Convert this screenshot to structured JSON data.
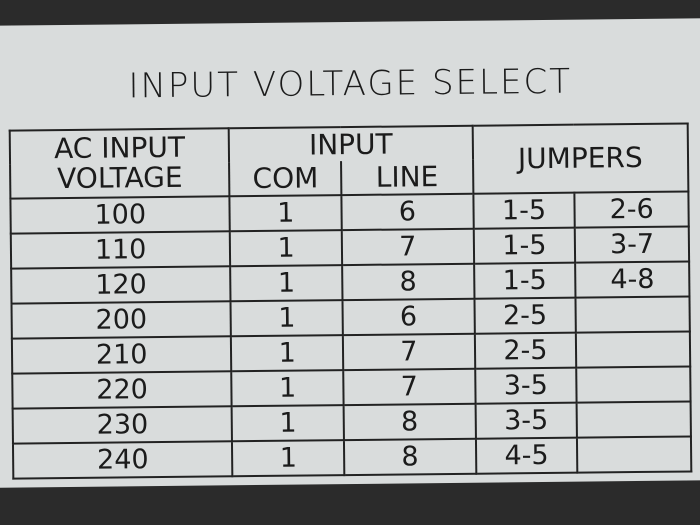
{
  "title": "INPUT VOLTAGE SELECT",
  "headers": {
    "ac_input_voltage": "AC INPUT VOLTAGE",
    "input": "INPUT",
    "com": "COM",
    "line": "LINE",
    "jumpers": "JUMPERS"
  },
  "rows": [
    {
      "voltage": "100",
      "com": "1",
      "line": "6",
      "jumper1": "1-5",
      "jumper2": "2-6"
    },
    {
      "voltage": "110",
      "com": "1",
      "line": "7",
      "jumper1": "1-5",
      "jumper2": "3-7"
    },
    {
      "voltage": "120",
      "com": "1",
      "line": "8",
      "jumper1": "1-5",
      "jumper2": "4-8"
    },
    {
      "voltage": "200",
      "com": "1",
      "line": "6",
      "jumper1": "2-5",
      "jumper2": ""
    },
    {
      "voltage": "210",
      "com": "1",
      "line": "7",
      "jumper1": "2-5",
      "jumper2": ""
    },
    {
      "voltage": "220",
      "com": "1",
      "line": "7",
      "jumper1": "3-5",
      "jumper2": ""
    },
    {
      "voltage": "230",
      "com": "1",
      "line": "8",
      "jumper1": "3-5",
      "jumper2": ""
    },
    {
      "voltage": "240",
      "com": "1",
      "line": "8",
      "jumper1": "4-5",
      "jumper2": ""
    }
  ]
}
